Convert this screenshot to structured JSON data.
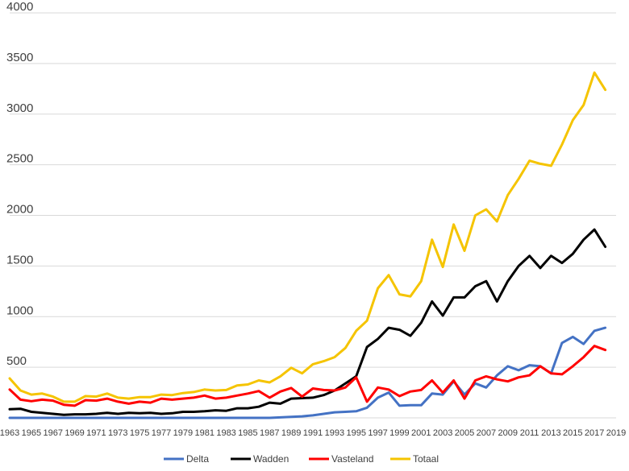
{
  "chart_data": {
    "type": "line",
    "title": "",
    "xlabel": "",
    "ylabel": "",
    "ylim": [
      0,
      4000
    ],
    "yticks": [
      500,
      1000,
      1500,
      2000,
      2500,
      3000,
      3500,
      4000
    ],
    "grid": true,
    "legend_position": "bottom",
    "x": [
      1963,
      1964,
      1965,
      1966,
      1967,
      1968,
      1969,
      1970,
      1971,
      1972,
      1973,
      1974,
      1975,
      1976,
      1977,
      1978,
      1979,
      1980,
      1981,
      1982,
      1983,
      1984,
      1985,
      1986,
      1987,
      1988,
      1989,
      1990,
      1991,
      1992,
      1993,
      1994,
      1995,
      1996,
      1997,
      1998,
      1999,
      2000,
      2001,
      2002,
      2003,
      2004,
      2005,
      2006,
      2007,
      2008,
      2009,
      2010,
      2011,
      2012,
      2013,
      2014,
      2015,
      2016,
      2017,
      2018
    ],
    "xtick_labels": [
      "1963",
      "1965",
      "1967",
      "1969",
      "1971",
      "1973",
      "1975",
      "1977",
      "1979",
      "1981",
      "1983",
      "1985",
      "1987",
      "1989",
      "1991",
      "1993",
      "1995",
      "1997",
      "1999",
      "2001",
      "2003",
      "2005",
      "2007",
      "2009",
      "2011",
      "2013",
      "2015",
      "2017",
      "2019"
    ],
    "series": [
      {
        "name": "Delta",
        "color": "#4472c4",
        "values": [
          0,
          0,
          0,
          0,
          0,
          0,
          0,
          0,
          0,
          0,
          0,
          0,
          0,
          0,
          0,
          0,
          0,
          0,
          0,
          0,
          0,
          0,
          0,
          0,
          0,
          5,
          10,
          15,
          25,
          40,
          55,
          60,
          65,
          100,
          200,
          250,
          120,
          125,
          125,
          240,
          230,
          360,
          230,
          340,
          300,
          420,
          510,
          470,
          520,
          510,
          440,
          740,
          800,
          730,
          860,
          890
        ]
      },
      {
        "name": "Wadden",
        "color": "#000000",
        "values": [
          85,
          90,
          60,
          50,
          40,
          30,
          35,
          35,
          40,
          50,
          40,
          50,
          45,
          50,
          40,
          45,
          60,
          60,
          65,
          75,
          70,
          95,
          95,
          110,
          150,
          140,
          190,
          195,
          200,
          225,
          270,
          340,
          410,
          700,
          780,
          890,
          870,
          810,
          940,
          1150,
          1010,
          1190,
          1190,
          1300,
          1350,
          1150,
          1350,
          1500,
          1600,
          1480,
          1600,
          1530,
          1620,
          1760,
          1860,
          1690
        ]
      },
      {
        "name": "Vasteland",
        "color": "#ff0000",
        "values": [
          280,
          180,
          165,
          180,
          170,
          130,
          120,
          175,
          170,
          190,
          160,
          140,
          160,
          150,
          190,
          180,
          190,
          200,
          220,
          190,
          200,
          220,
          240,
          265,
          200,
          260,
          295,
          210,
          290,
          275,
          270,
          300,
          400,
          160,
          300,
          280,
          215,
          260,
          275,
          370,
          250,
          370,
          190,
          370,
          410,
          380,
          360,
          400,
          420,
          510,
          440,
          430,
          510,
          600,
          710,
          670
        ]
      },
      {
        "name": "Totaal",
        "color": "#f5c400",
        "values": [
          390,
          270,
          230,
          240,
          210,
          160,
          160,
          215,
          210,
          240,
          200,
          190,
          205,
          205,
          230,
          225,
          245,
          255,
          280,
          270,
          275,
          320,
          330,
          370,
          350,
          410,
          495,
          440,
          530,
          560,
          600,
          690,
          860,
          960,
          1280,
          1410,
          1220,
          1200,
          1350,
          1760,
          1490,
          1910,
          1650,
          2000,
          2060,
          1940,
          2200,
          2360,
          2540,
          2510,
          2490,
          2700,
          2940,
          3090,
          3410,
          3240
        ]
      }
    ]
  }
}
